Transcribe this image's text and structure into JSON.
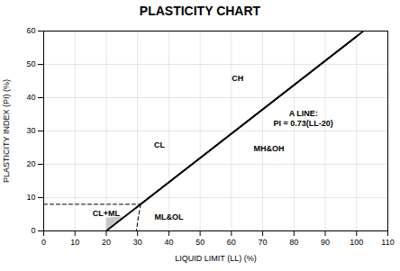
{
  "chart_data": {
    "type": "line",
    "title": "PLASTICITY CHART",
    "xlabel": "LIQUID LIMIT (LL) (%)",
    "ylabel": "PLASTICITY INDEX (PI) (%)",
    "xlim": [
      0,
      110
    ],
    "ylim": [
      0,
      60
    ],
    "xticks": [
      0,
      10,
      20,
      30,
      40,
      50,
      60,
      70,
      80,
      90,
      100,
      110
    ],
    "yticks": [
      0,
      10,
      20,
      30,
      40,
      50,
      60
    ],
    "grid": true,
    "series": [
      {
        "type": "area",
        "color": "#c8c8c8",
        "x": [
          20.0,
          26.0,
          20.0
        ],
        "values": [
          0.0,
          4.38,
          4.0
        ]
      },
      {
        "type": "line",
        "color": "#000000",
        "line_style": "dashed",
        "x": [
          0,
          30.96
        ],
        "values": [
          8,
          8
        ]
      },
      {
        "type": "line",
        "color": "#000000",
        "line_style": "dashed",
        "x": [
          30.96,
          29.59
        ],
        "values": [
          8,
          0
        ]
      },
      {
        "type": "line",
        "color": "#000000",
        "line_style": "solid",
        "x": [
          29.59,
          102.19
        ],
        "values": [
          7.0007,
          59.9987
        ]
      },
      {
        "type": "line",
        "color": "#000000",
        "line_style": "solid",
        "x": [
          20.0,
          100.0
        ],
        "values": [
          0.0,
          58.4
        ]
      }
    ],
    "annotations": [
      {
        "text": "CH",
        "x": 62,
        "y": 46
      },
      {
        "text": "CL",
        "x": 37,
        "y": 26
      },
      {
        "text": "MH&OH",
        "x": 72,
        "y": 25
      },
      {
        "text": "ML&OL",
        "x": 40,
        "y": 4.5
      },
      {
        "text": "CL+ML",
        "x": 20,
        "y": 5.5
      },
      {
        "text": "A LINE:\nPI = 0.73(LL-20)",
        "x": 83,
        "y": 34
      }
    ]
  }
}
